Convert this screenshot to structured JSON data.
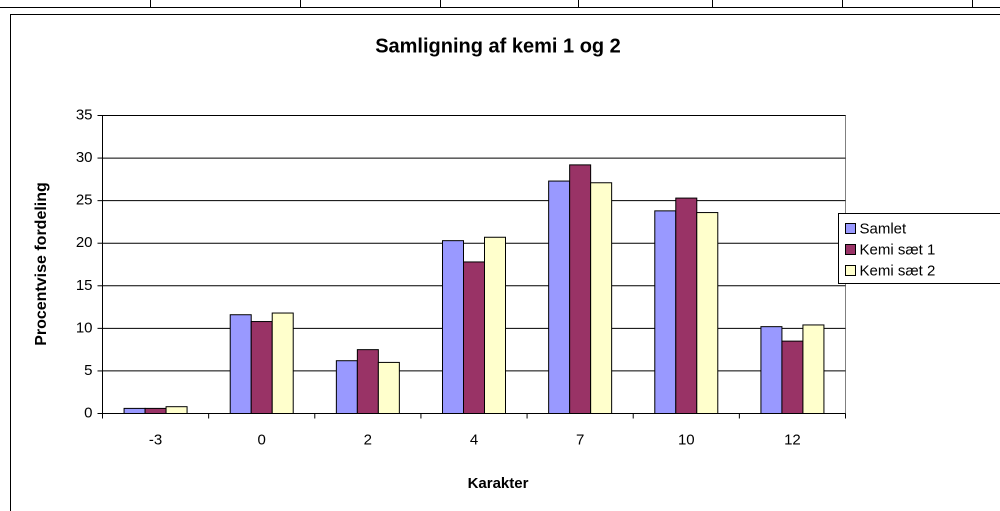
{
  "chart_data": {
    "type": "bar",
    "title": "Samligning af kemi 1 og 2",
    "x_label": "Karakter",
    "y_label": "Procentvise fordeling",
    "categories": [
      "-3",
      "0",
      "2",
      "4",
      "7",
      "10",
      "12"
    ],
    "series": [
      {
        "name": "Samlet",
        "color": "#9999ff",
        "values": [
          0.6,
          11.6,
          6.2,
          20.3,
          27.3,
          23.8,
          10.2
        ]
      },
      {
        "name": "Kemi sæt 1",
        "color": "#993366",
        "values": [
          0.6,
          10.8,
          7.5,
          17.8,
          29.2,
          25.3,
          8.5
        ]
      },
      {
        "name": "Kemi sæt 2",
        "color": "#ffffcc",
        "values": [
          0.8,
          11.8,
          6.0,
          20.7,
          27.1,
          23.6,
          10.4
        ]
      }
    ],
    "ylim": [
      0,
      35
    ],
    "yticks": [
      0,
      5,
      10,
      15,
      20,
      25,
      30,
      35
    ],
    "grid": true,
    "legend": "right"
  }
}
